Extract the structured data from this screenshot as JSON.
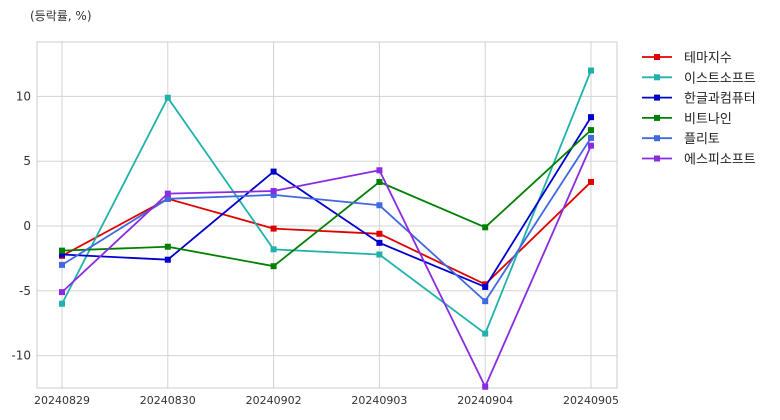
{
  "chart_data": {
    "type": "line",
    "unit_label": "(등락률, %)",
    "title": "",
    "xlabel": "",
    "ylabel": "",
    "categories": [
      "20240829",
      "20240830",
      "20240902",
      "20240903",
      "20240904",
      "20240905"
    ],
    "ylim": [
      -12.5,
      14.2
    ],
    "yticks": [
      -10,
      -5,
      0,
      5,
      10
    ],
    "grid": true,
    "legend_position": "right",
    "series": [
      {
        "name": "테마지수",
        "color": "#e00000",
        "values": [
          -2.3,
          2.1,
          -0.2,
          -0.6,
          -4.5,
          3.4
        ]
      },
      {
        "name": "이스트소프트",
        "color": "#20b2aa",
        "values": [
          -6.0,
          9.9,
          -1.8,
          -2.2,
          -8.3,
          12.0
        ]
      },
      {
        "name": "한글과컴퓨터",
        "color": "#0000cd",
        "values": [
          -2.2,
          -2.6,
          4.2,
          -1.3,
          -4.7,
          8.4
        ]
      },
      {
        "name": "비트나인",
        "color": "#008000",
        "values": [
          -1.9,
          -1.6,
          -3.1,
          3.4,
          -0.1,
          7.4
        ]
      },
      {
        "name": "플리토",
        "color": "#4169e1",
        "values": [
          -3.0,
          2.1,
          2.4,
          1.6,
          -5.8,
          6.8
        ]
      },
      {
        "name": "에스피소프트",
        "color": "#8a2be2",
        "values": [
          -5.1,
          2.5,
          2.7,
          4.3,
          -12.4,
          6.2
        ]
      }
    ]
  }
}
